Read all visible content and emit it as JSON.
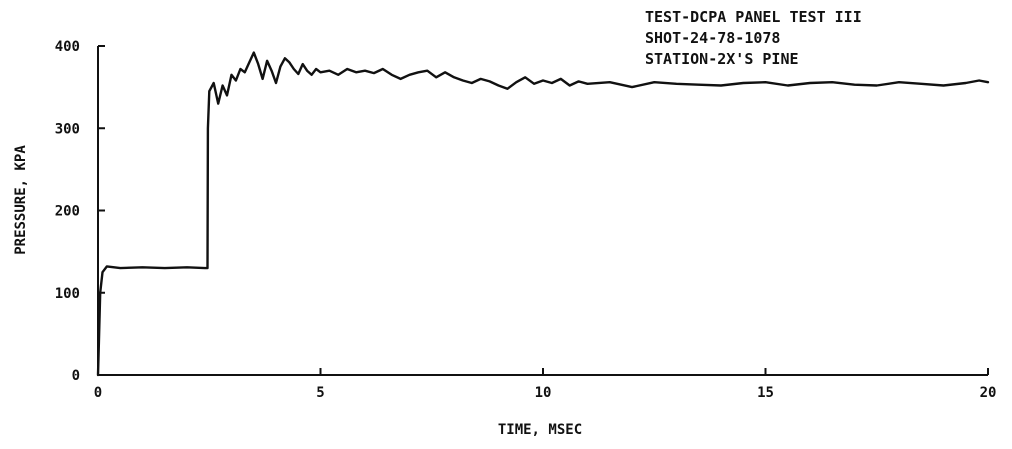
{
  "chart_data": {
    "type": "line",
    "title_lines": [
      "TEST-DCPA PANEL TEST III",
      "SHOT-24-78-1078",
      "STATION-2X'S PINE"
    ],
    "xlabel": "TIME, MSEC",
    "ylabel": "PRESSURE, KPA",
    "xlim": [
      0,
      20
    ],
    "ylim": [
      0,
      400
    ],
    "x_ticks": [
      0,
      5,
      10,
      15,
      20
    ],
    "x_tick_labels": [
      "0",
      "5",
      "10",
      "15",
      "20"
    ],
    "y_ticks": [
      0,
      100,
      200,
      300,
      400
    ],
    "y_tick_labels": [
      "0",
      "100",
      "200",
      "300",
      "400"
    ],
    "grid": false,
    "series": [
      {
        "color": "#111111",
        "x": [
          0,
          0.02,
          0.05,
          0.1,
          0.2,
          0.5,
          1.0,
          1.5,
          2.0,
          2.4,
          2.46,
          2.47,
          2.5,
          2.6,
          2.7,
          2.8,
          2.9,
          3.0,
          3.1,
          3.2,
          3.3,
          3.4,
          3.5,
          3.6,
          3.7,
          3.8,
          3.9,
          4.0,
          4.1,
          4.2,
          4.3,
          4.4,
          4.5,
          4.6,
          4.7,
          4.8,
          4.9,
          5.0,
          5.2,
          5.4,
          5.6,
          5.8,
          6.0,
          6.2,
          6.4,
          6.6,
          6.8,
          7.0,
          7.2,
          7.4,
          7.6,
          7.8,
          8.0,
          8.2,
          8.4,
          8.6,
          8.8,
          9.0,
          9.2,
          9.4,
          9.6,
          9.8,
          10.0,
          10.2,
          10.4,
          10.6,
          10.8,
          11.0,
          11.5,
          12.0,
          12.5,
          13.0,
          13.5,
          14.0,
          14.5,
          15.0,
          15.5,
          16.0,
          16.5,
          17.0,
          17.5,
          18.0,
          18.5,
          19.0,
          19.5,
          19.8,
          20.0
        ],
        "y": [
          0,
          40,
          100,
          125,
          132,
          130,
          131,
          130,
          131,
          130,
          130,
          300,
          345,
          355,
          330,
          352,
          340,
          365,
          358,
          372,
          368,
          380,
          392,
          378,
          360,
          382,
          370,
          355,
          375,
          385,
          380,
          372,
          366,
          378,
          370,
          365,
          372,
          368,
          370,
          365,
          372,
          368,
          370,
          367,
          372,
          365,
          360,
          365,
          368,
          370,
          362,
          368,
          362,
          358,
          355,
          360,
          357,
          352,
          348,
          356,
          362,
          354,
          358,
          355,
          360,
          352,
          357,
          354,
          356,
          350,
          356,
          354,
          353,
          352,
          355,
          356,
          352,
          355,
          356,
          353,
          352,
          356,
          354,
          352,
          355,
          358,
          356
        ]
      }
    ]
  }
}
